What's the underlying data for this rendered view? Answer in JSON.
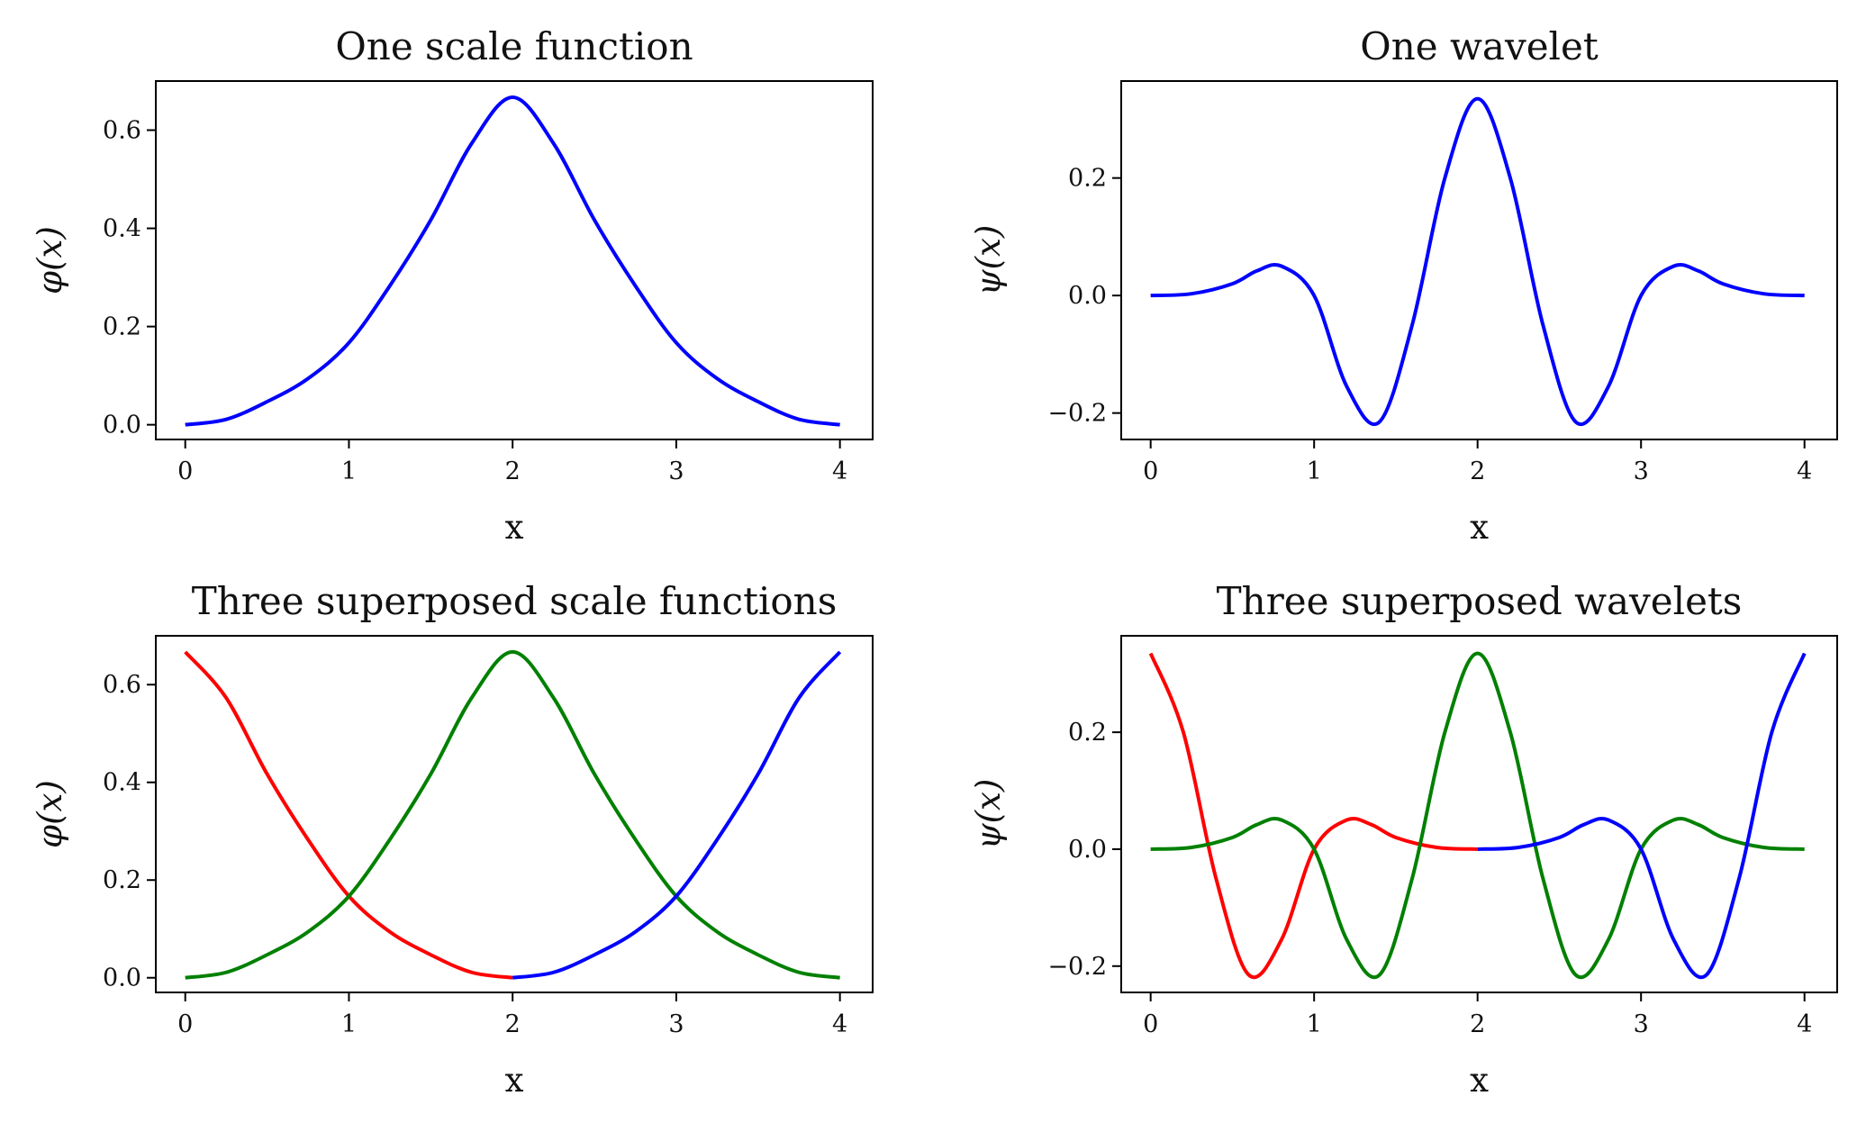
{
  "chart_data": [
    {
      "type": "line",
      "title": "One scale function",
      "xlabel": "x",
      "ylabel": "φ(x)",
      "xlim": [
        -0.18,
        4.2
      ],
      "ylim": [
        -0.03,
        0.7
      ],
      "xticks": [
        0,
        1,
        2,
        3,
        4
      ],
      "xtick_labels": [
        "0",
        "1",
        "2",
        "3",
        "4"
      ],
      "yticks": [
        0.0,
        0.2,
        0.4,
        0.6
      ],
      "ytick_labels": [
        "0.0",
        "0.2",
        "0.4",
        "0.6"
      ],
      "grid": false,
      "series": [
        {
          "color": "#0000ff",
          "x": [
            0,
            0.25,
            0.5,
            0.75,
            1,
            1.25,
            1.5,
            1.75,
            2,
            2.25,
            2.5,
            2.75,
            3,
            3.25,
            3.5,
            3.75,
            4
          ],
          "y": [
            0.0,
            0.011,
            0.047,
            0.094,
            0.167,
            0.283,
            0.417,
            0.573,
            0.667,
            0.573,
            0.417,
            0.283,
            0.167,
            0.094,
            0.047,
            0.011,
            0.0
          ]
        }
      ]
    },
    {
      "type": "line",
      "title": "One wavelet",
      "xlabel": "x",
      "ylabel": "ψ(x)",
      "xlim": [
        -0.18,
        4.2
      ],
      "ylim": [
        -0.245,
        0.365
      ],
      "xticks": [
        0,
        1,
        2,
        3,
        4
      ],
      "xtick_labels": [
        "0",
        "1",
        "2",
        "3",
        "4"
      ],
      "yticks": [
        -0.2,
        0.0,
        0.2
      ],
      "ytick_labels": [
        "−0.2",
        "0.0",
        "0.2"
      ],
      "grid": false,
      "series": [
        {
          "color": "#0000ff",
          "x": [
            0,
            0.25,
            0.5,
            0.65,
            0.8,
            1,
            1.2,
            1.4,
            1.6,
            1.8,
            2,
            2.2,
            2.4,
            2.6,
            2.8,
            3,
            3.2,
            3.35,
            3.5,
            3.75,
            4
          ],
          "y": [
            0.0,
            0.003,
            0.02,
            0.042,
            0.05,
            0.0,
            -0.155,
            -0.215,
            -0.05,
            0.2,
            0.335,
            0.2,
            -0.05,
            -0.215,
            -0.155,
            0.0,
            0.05,
            0.042,
            0.02,
            0.003,
            0.0
          ]
        }
      ]
    },
    {
      "type": "line",
      "title": "Three superposed scale functions",
      "xlabel": "x",
      "ylabel": "φ(x)",
      "xlim": [
        -0.18,
        4.2
      ],
      "ylim": [
        -0.03,
        0.7
      ],
      "xticks": [
        0,
        1,
        2,
        3,
        4
      ],
      "xtick_labels": [
        "0",
        "1",
        "2",
        "3",
        "4"
      ],
      "yticks": [
        0.0,
        0.2,
        0.4,
        0.6
      ],
      "ytick_labels": [
        "0.0",
        "0.2",
        "0.4",
        "0.6"
      ],
      "grid": false,
      "series": [
        {
          "color": "#ff0000",
          "x": [
            0,
            0.25,
            0.5,
            0.75,
            1,
            1.25,
            1.5,
            1.75,
            2
          ],
          "y": [
            0.667,
            0.573,
            0.417,
            0.283,
            0.167,
            0.094,
            0.047,
            0.011,
            0.0
          ]
        },
        {
          "color": "#008000",
          "x": [
            0,
            0.25,
            0.5,
            0.75,
            1,
            1.25,
            1.5,
            1.75,
            2,
            2.25,
            2.5,
            2.75,
            3,
            3.25,
            3.5,
            3.75,
            4
          ],
          "y": [
            0.0,
            0.011,
            0.047,
            0.094,
            0.167,
            0.283,
            0.417,
            0.573,
            0.667,
            0.573,
            0.417,
            0.283,
            0.167,
            0.094,
            0.047,
            0.011,
            0.0
          ]
        },
        {
          "color": "#0000ff",
          "x": [
            2,
            2.25,
            2.5,
            2.75,
            3,
            3.25,
            3.5,
            3.75,
            4
          ],
          "y": [
            0.0,
            0.011,
            0.047,
            0.094,
            0.167,
            0.283,
            0.417,
            0.573,
            0.667
          ]
        }
      ]
    },
    {
      "type": "line",
      "title": "Three superposed wavelets",
      "xlabel": "x",
      "ylabel": "ψ(x)",
      "xlim": [
        -0.18,
        4.2
      ],
      "ylim": [
        -0.245,
        0.365
      ],
      "xticks": [
        0,
        1,
        2,
        3,
        4
      ],
      "xtick_labels": [
        "0",
        "1",
        "2",
        "3",
        "4"
      ],
      "yticks": [
        -0.2,
        0.0,
        0.2
      ],
      "ytick_labels": [
        "−0.2",
        "0.0",
        "0.2"
      ],
      "grid": false,
      "series": [
        {
          "color": "#ff0000",
          "x": [
            0,
            0.2,
            0.4,
            0.6,
            0.8,
            1,
            1.2,
            1.35,
            1.5,
            1.75,
            2
          ],
          "y": [
            0.335,
            0.2,
            -0.05,
            -0.215,
            -0.155,
            0.0,
            0.05,
            0.042,
            0.02,
            0.003,
            0.0
          ]
        },
        {
          "color": "#008000",
          "x": [
            0,
            0.25,
            0.5,
            0.65,
            0.8,
            1,
            1.2,
            1.4,
            1.6,
            1.8,
            2,
            2.2,
            2.4,
            2.6,
            2.8,
            3,
            3.2,
            3.35,
            3.5,
            3.75,
            4
          ],
          "y": [
            0.0,
            0.003,
            0.02,
            0.042,
            0.05,
            0.0,
            -0.155,
            -0.215,
            -0.05,
            0.2,
            0.335,
            0.2,
            -0.05,
            -0.215,
            -0.155,
            0.0,
            0.05,
            0.042,
            0.02,
            0.003,
            0.0
          ]
        },
        {
          "color": "#0000ff",
          "x": [
            2,
            2.25,
            2.5,
            2.65,
            2.8,
            3,
            3.2,
            3.4,
            3.6,
            3.8,
            4
          ],
          "y": [
            0.0,
            0.003,
            0.02,
            0.042,
            0.05,
            0.0,
            -0.155,
            -0.215,
            -0.05,
            0.2,
            0.335
          ]
        }
      ]
    }
  ]
}
